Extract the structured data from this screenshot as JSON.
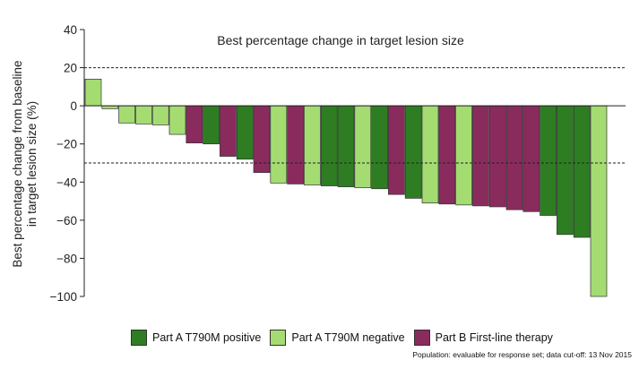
{
  "chart_data": {
    "type": "bar",
    "title": "Best percentage change in target lesion size",
    "ylabel_line1": "Best percentage change from baseline",
    "ylabel_line2": "in target lesion size (%)",
    "ylim": [
      -100,
      40
    ],
    "yticks": [
      40,
      20,
      0,
      -20,
      -40,
      -60,
      -80,
      -100
    ],
    "reference_lines": [
      20,
      -30
    ],
    "series": [
      {
        "key": "a_pos",
        "name": "Part A T790M positive",
        "color": "#2e7d22"
      },
      {
        "key": "a_neg",
        "name": "Part A T790M negative",
        "color": "#a4dc72"
      },
      {
        "key": "b",
        "name": "Part B  First-line therapy",
        "color": "#8a2b5e"
      }
    ],
    "bars": [
      {
        "value": 14,
        "series": "a_neg"
      },
      {
        "value": -1.5,
        "series": "a_neg"
      },
      {
        "value": -9,
        "series": "a_neg"
      },
      {
        "value": -9.5,
        "series": "a_neg"
      },
      {
        "value": -10,
        "series": "a_neg"
      },
      {
        "value": -15,
        "series": "a_neg"
      },
      {
        "value": -19.5,
        "series": "b"
      },
      {
        "value": -20,
        "series": "a_pos"
      },
      {
        "value": -26.5,
        "series": "b"
      },
      {
        "value": -28,
        "series": "a_pos"
      },
      {
        "value": -35,
        "series": "b"
      },
      {
        "value": -40.5,
        "series": "a_neg"
      },
      {
        "value": -41,
        "series": "b"
      },
      {
        "value": -41.5,
        "series": "a_neg"
      },
      {
        "value": -42,
        "series": "a_pos"
      },
      {
        "value": -42.5,
        "series": "a_pos"
      },
      {
        "value": -43,
        "series": "a_neg"
      },
      {
        "value": -43.5,
        "series": "a_pos"
      },
      {
        "value": -46.5,
        "series": "b"
      },
      {
        "value": -48.5,
        "series": "a_pos"
      },
      {
        "value": -51,
        "series": "a_neg"
      },
      {
        "value": -51.5,
        "series": "b"
      },
      {
        "value": -52,
        "series": "a_neg"
      },
      {
        "value": -52.5,
        "series": "b"
      },
      {
        "value": -53,
        "series": "b"
      },
      {
        "value": -54.5,
        "series": "b"
      },
      {
        "value": -55.5,
        "series": "b"
      },
      {
        "value": -57.5,
        "series": "a_pos"
      },
      {
        "value": -67.5,
        "series": "a_pos"
      },
      {
        "value": -69,
        "series": "a_pos"
      },
      {
        "value": -100,
        "series": "a_neg"
      }
    ],
    "footnote": "Population: evaluable for response set; data cut-off: 13 Nov 2015",
    "grid": false,
    "legend_position": "bottom"
  }
}
